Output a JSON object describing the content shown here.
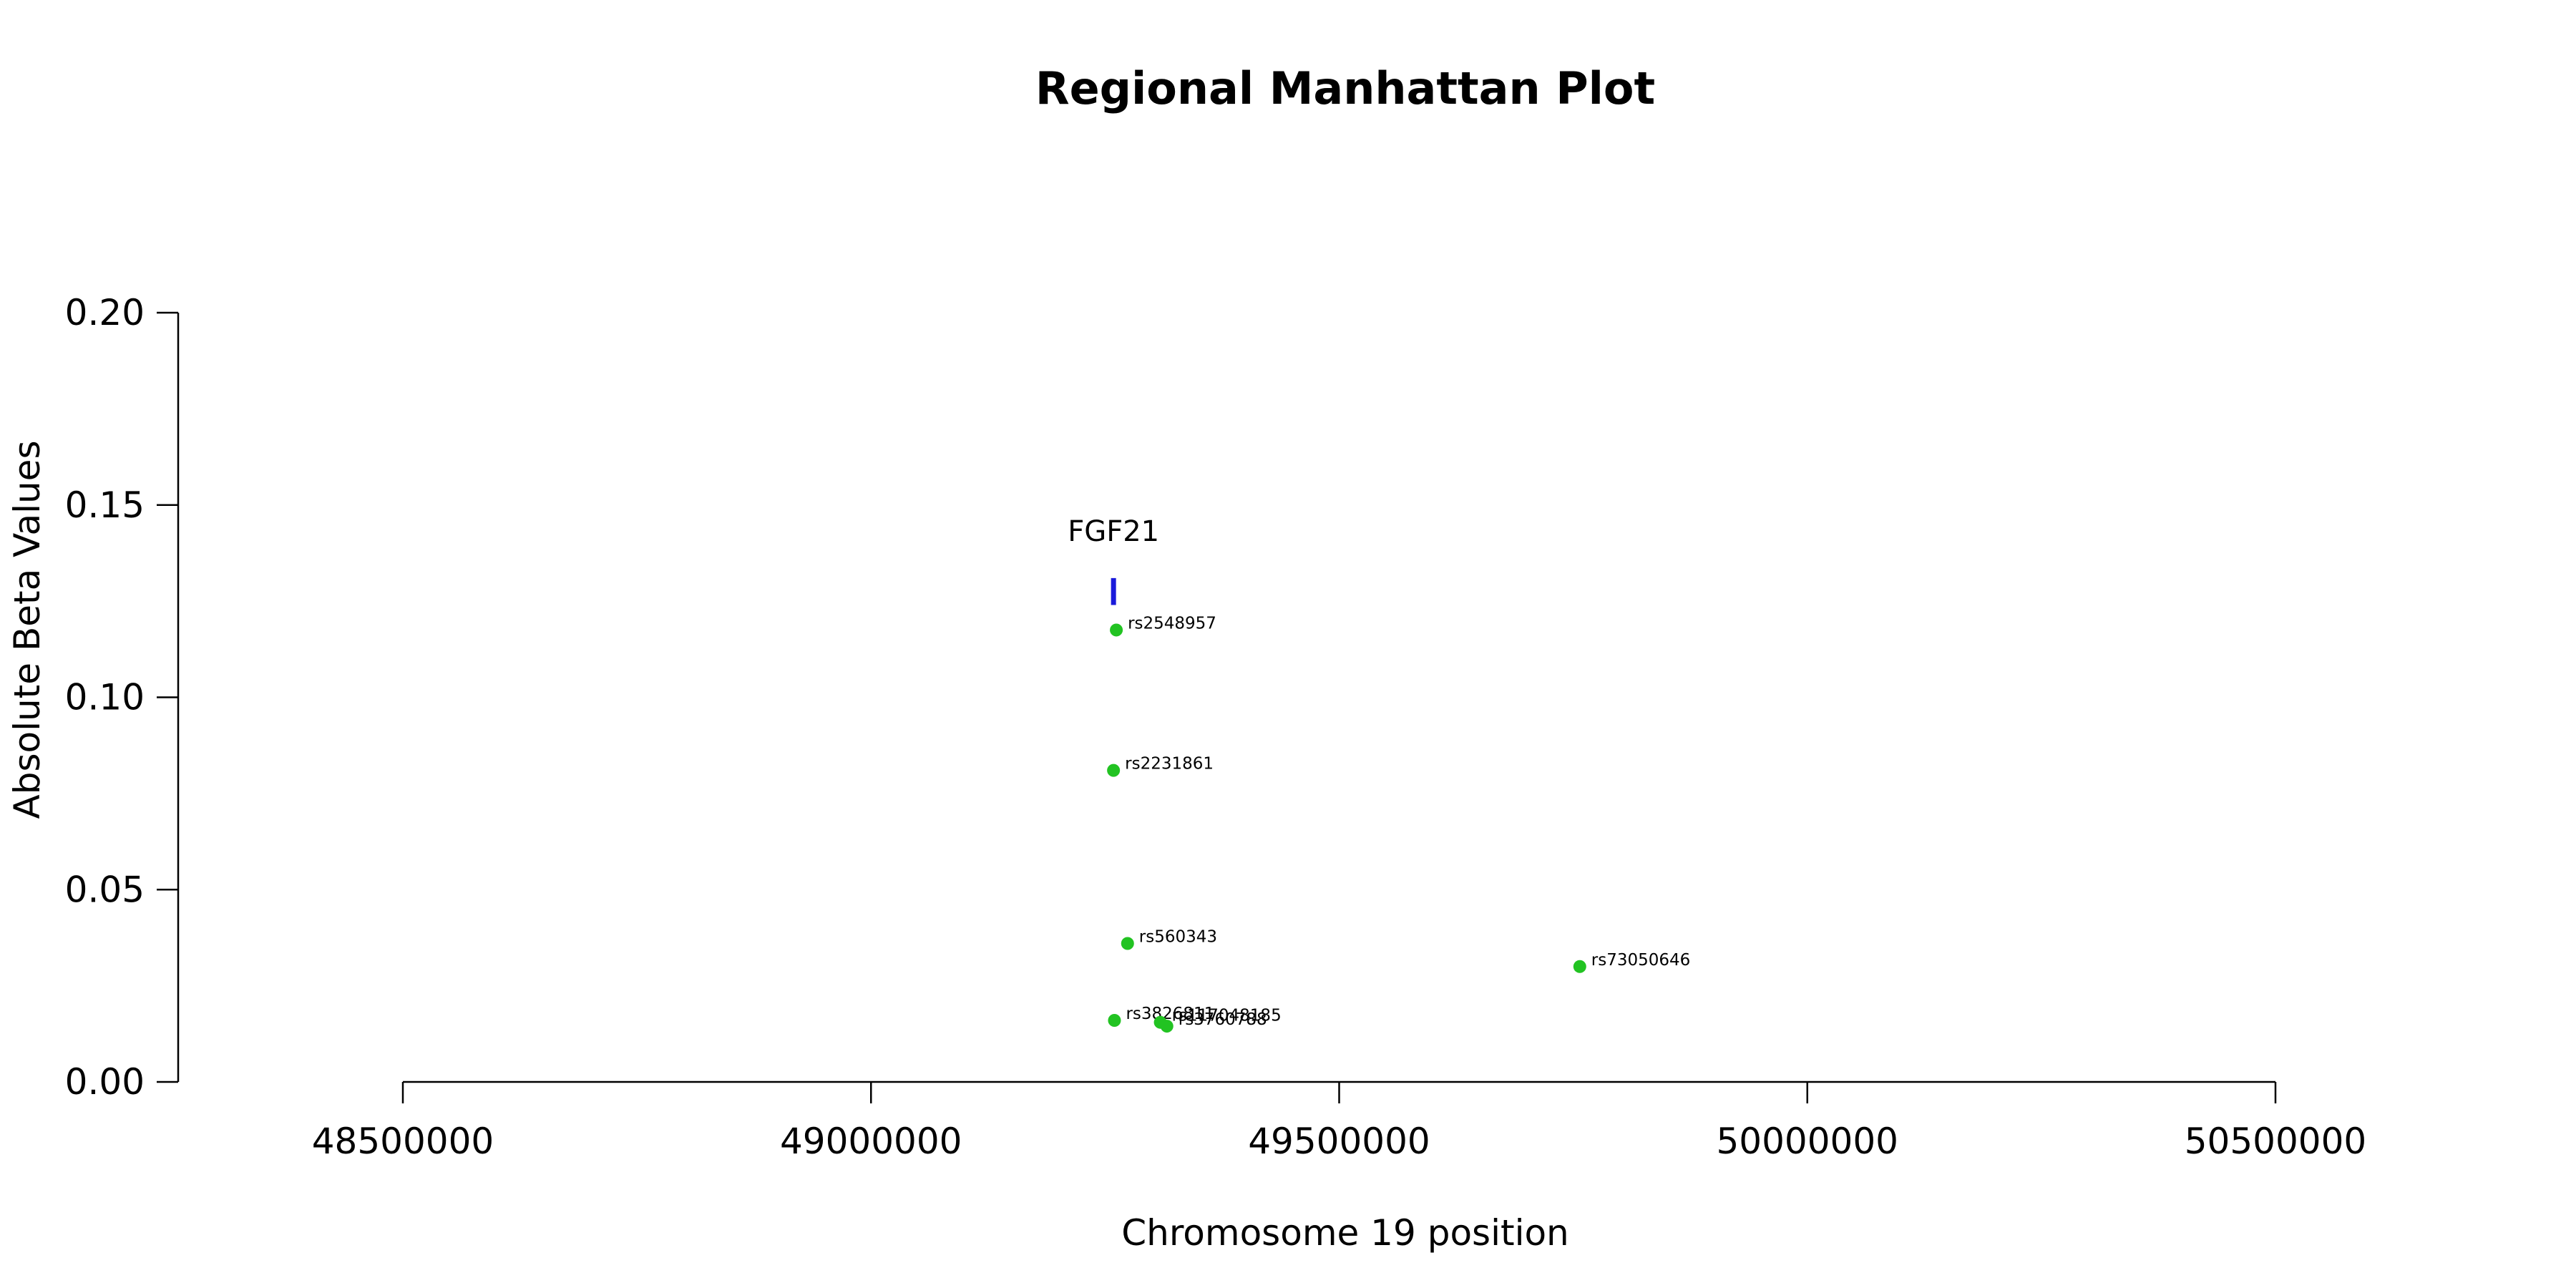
{
  "chart_data": {
    "type": "scatter",
    "title": "Regional Manhattan Plot",
    "xlabel": "Chromosome 19 position",
    "ylabel": "Absolute Beta Values",
    "xlim": [
      48500000,
      50500000
    ],
    "ylim": [
      0,
      0.2
    ],
    "x_ticks": [
      48500000,
      49000000,
      49500000,
      50000000,
      50500000
    ],
    "x_tick_labels": [
      "48500000",
      "49000000",
      "49500000",
      "50000000",
      "50500000"
    ],
    "y_ticks": [
      0,
      0.05,
      0.1,
      0.15,
      0.2
    ],
    "y_tick_labels": [
      "0.00",
      "0.05",
      "0.10",
      "0.15",
      "0.20"
    ],
    "grid": false,
    "point_color": "#22c322",
    "gene_color": "#1a1adb",
    "points": [
      {
        "label": "rs2548957",
        "x": 49262000,
        "y": 0.1175
      },
      {
        "label": "rs2231861",
        "x": 49259000,
        "y": 0.081
      },
      {
        "label": "rs560343",
        "x": 49274000,
        "y": 0.036
      },
      {
        "label": "rs73050646",
        "x": 49757000,
        "y": 0.03
      },
      {
        "label": "rs3826811",
        "x": 49260000,
        "y": 0.016
      },
      {
        "label": "rs117048185",
        "x": 49309000,
        "y": 0.0155
      },
      {
        "label": "rs3760788",
        "x": 49316000,
        "y": 0.0145
      }
    ],
    "genes": [
      {
        "name": "FGF21",
        "x": 49259000,
        "y_low": 0.124,
        "y_high": 0.131
      }
    ]
  }
}
